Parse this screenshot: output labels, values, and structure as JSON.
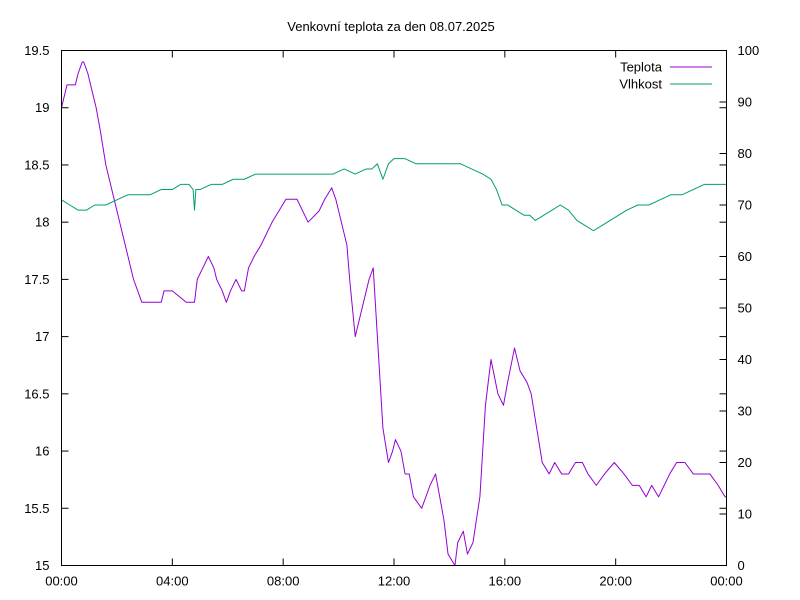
{
  "chart_data": {
    "type": "line",
    "title": "Venkovní teplota za den 08.07.2025",
    "xlabel": "",
    "ylabel": "",
    "y2label": "",
    "x_tick_labels": [
      "00:00",
      "04:00",
      "08:00",
      "12:00",
      "16:00",
      "20:00",
      "00:00"
    ],
    "x_ticks": [
      0,
      4,
      8,
      12,
      16,
      20,
      24
    ],
    "xlim": [
      0,
      24
    ],
    "ylim": [
      15,
      19.5
    ],
    "y_ticks": [
      15,
      15.5,
      16,
      16.5,
      17,
      17.5,
      18,
      18.5,
      19,
      19.5
    ],
    "y_tick_labels": [
      "15",
      "15.5",
      "16",
      "16.5",
      "17",
      "17.5",
      "18",
      "18.5",
      "19",
      "19.5"
    ],
    "y2lim": [
      0,
      100
    ],
    "y2_ticks": [
      0,
      10,
      20,
      30,
      40,
      50,
      60,
      70,
      80,
      90,
      100
    ],
    "y2_tick_labels": [
      "0",
      "10",
      "20",
      "30",
      "40",
      "50",
      "60",
      "70",
      "80",
      "90",
      "100"
    ],
    "grid": false,
    "legend_position": "top-right",
    "series": [
      {
        "name": "Teplota",
        "axis": "y",
        "color": "#9400d3",
        "x": [
          0,
          0.1,
          0.2,
          0.5,
          0.6,
          0.75,
          0.8,
          0.95,
          1.05,
          1.25,
          1.4,
          1.6,
          1.8,
          2.0,
          2.2,
          2.4,
          2.6,
          2.9,
          3.1,
          3.2,
          3.4,
          3.6,
          3.7,
          4.0,
          4.5,
          4.8,
          4.9,
          5.1,
          5.3,
          5.5,
          5.6,
          5.8,
          5.95,
          6.1,
          6.3,
          6.5,
          6.6,
          6.75,
          6.95,
          7.2,
          7.4,
          7.6,
          7.85,
          8.1,
          8.5,
          8.9,
          9.3,
          9.5,
          9.75,
          9.9,
          10.3,
          10.4,
          10.6,
          10.8,
          11.1,
          11.25,
          11.6,
          11.8,
          11.95,
          12.05,
          12.25,
          12.4,
          12.55,
          12.7,
          13.0,
          13.3,
          13.5,
          13.65,
          13.8,
          13.95,
          14.2,
          14.3,
          14.5,
          14.65,
          14.85,
          15.1,
          15.3,
          15.5,
          15.75,
          15.95,
          16.1,
          16.35,
          16.55,
          16.8,
          16.95,
          17.15,
          17.35,
          17.6,
          17.8,
          18.05,
          18.3,
          18.55,
          18.8,
          19.0,
          19.3,
          19.6,
          19.95,
          20.3,
          20.6,
          20.85,
          21.1,
          21.3,
          21.55,
          21.75,
          21.95,
          22.2,
          22.5,
          22.8,
          23.1,
          23.4,
          23.7,
          23.95,
          24.0
        ],
        "values": [
          19.0,
          19.1,
          19.2,
          19.2,
          19.3,
          19.4,
          19.4,
          19.3,
          19.2,
          19.0,
          18.8,
          18.5,
          18.3,
          18.1,
          17.9,
          17.7,
          17.5,
          17.3,
          17.3,
          17.3,
          17.3,
          17.3,
          17.4,
          17.4,
          17.3,
          17.3,
          17.5,
          17.6,
          17.7,
          17.6,
          17.5,
          17.4,
          17.3,
          17.4,
          17.5,
          17.4,
          17.4,
          17.6,
          17.7,
          17.8,
          17.9,
          18.0,
          18.1,
          18.2,
          18.2,
          18.0,
          18.1,
          18.2,
          18.3,
          18.2,
          17.8,
          17.5,
          17.0,
          17.2,
          17.5,
          17.6,
          16.2,
          15.9,
          16.0,
          16.1,
          16.0,
          15.8,
          15.8,
          15.6,
          15.5,
          15.7,
          15.8,
          15.6,
          15.4,
          15.1,
          15.0,
          15.2,
          15.3,
          15.1,
          15.2,
          15.6,
          16.4,
          16.8,
          16.5,
          16.4,
          16.6,
          16.9,
          16.7,
          16.6,
          16.5,
          16.2,
          15.9,
          15.8,
          15.9,
          15.8,
          15.8,
          15.9,
          15.9,
          15.8,
          15.7,
          15.8,
          15.9,
          15.8,
          15.7,
          15.7,
          15.6,
          15.7,
          15.6,
          15.7,
          15.8,
          15.9,
          15.9,
          15.8,
          15.8,
          15.8,
          15.7,
          15.6,
          15.6
        ]
      },
      {
        "name": "Vlhkost",
        "axis": "y2",
        "color": "#009e73",
        "x": [
          0,
          0.3,
          0.6,
          0.9,
          1.2,
          1.6,
          2.0,
          2.4,
          2.8,
          3.2,
          3.6,
          4.0,
          4.3,
          4.6,
          4.75,
          4.8,
          4.85,
          5.0,
          5.4,
          5.8,
          6.2,
          6.6,
          7.0,
          7.4,
          7.8,
          8.2,
          8.6,
          9.0,
          9.4,
          9.8,
          10.2,
          10.6,
          11.0,
          11.2,
          11.4,
          11.6,
          11.8,
          12.0,
          12.2,
          12.4,
          12.8,
          13.2,
          13.6,
          14.0,
          14.4,
          14.8,
          15.2,
          15.5,
          15.7,
          15.9,
          16.1,
          16.4,
          16.7,
          16.9,
          17.1,
          17.4,
          17.7,
          18.0,
          18.3,
          18.6,
          18.9,
          19.2,
          19.5,
          19.8,
          20.1,
          20.4,
          20.8,
          21.2,
          21.6,
          22.0,
          22.4,
          22.8,
          23.2,
          23.6,
          24.0
        ],
        "values": [
          71,
          70,
          69,
          69,
          70,
          70,
          71,
          72,
          72,
          72,
          73,
          73,
          74,
          74,
          73,
          69,
          73,
          73,
          74,
          74,
          75,
          75,
          76,
          76,
          76,
          76,
          76,
          76,
          76,
          76,
          77,
          76,
          77,
          77,
          78,
          75,
          78,
          79,
          79,
          79,
          78,
          78,
          78,
          78,
          78,
          77,
          76,
          75,
          73,
          70,
          70,
          69,
          68,
          68,
          67,
          68,
          69,
          70,
          69,
          67,
          66,
          65,
          66,
          67,
          68,
          69,
          70,
          70,
          71,
          72,
          72,
          73,
          74,
          74,
          74
        ]
      }
    ]
  }
}
